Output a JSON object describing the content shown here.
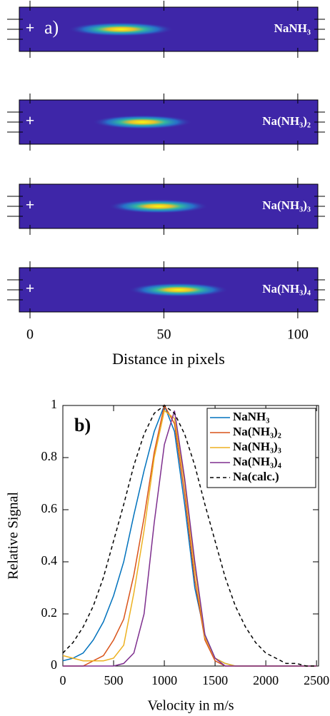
{
  "chart_data": [
    {
      "type": "strips",
      "annotation": "a)",
      "marker": "+",
      "xlabel": "Distance in pixels",
      "xlim": [
        -4,
        107.5
      ],
      "xticks": [
        0,
        50,
        100
      ],
      "strips": [
        {
          "label": "NaNH₃",
          "center": 34,
          "width": 18
        },
        {
          "label": "Na(NH₃)₂",
          "center": 42,
          "width": 17
        },
        {
          "label": "Na(NH₃)₃",
          "center": 48,
          "width": 17
        },
        {
          "label": "Na(NH₃)₄",
          "center": 55.5,
          "width": 17
        }
      ]
    },
    {
      "type": "line",
      "annotation": "b)",
      "xlabel": "Velocity in m/s",
      "ylabel": "Relative Signal",
      "xlim": [
        0,
        2520
      ],
      "ylim": [
        0,
        1
      ],
      "xticks": [
        0,
        500,
        1000,
        1500,
        2000,
        2500
      ],
      "yticks": [
        0,
        0.2,
        0.4,
        0.6,
        0.8,
        1
      ],
      "x": [
        0,
        100,
        200,
        300,
        400,
        500,
        600,
        700,
        800,
        900,
        1000,
        1100,
        1200,
        1300,
        1400,
        1500,
        1600,
        1700,
        1800,
        1900,
        2000,
        2100,
        2200,
        2300,
        2400,
        2500
      ],
      "series": [
        {
          "name": "NaNH₃",
          "color": "#0072bd",
          "dash": false,
          "values": [
            0.02,
            0.03,
            0.05,
            0.1,
            0.17,
            0.27,
            0.4,
            0.58,
            0.75,
            0.9,
            1,
            0.9,
            0.62,
            0.3,
            0.12,
            0.03,
            0.01,
            0,
            0,
            0,
            0,
            0,
            0,
            0,
            0,
            0
          ]
        },
        {
          "name": "Na(NH₃)₂",
          "color": "#d95319",
          "dash": false,
          "values": [
            0,
            0,
            0,
            0.02,
            0.04,
            0.1,
            0.18,
            0.35,
            0.57,
            0.82,
            1,
            0.93,
            0.66,
            0.33,
            0.1,
            0.02,
            0,
            0,
            0,
            0,
            0,
            0,
            0,
            0,
            0,
            0
          ]
        },
        {
          "name": "Na(NH₃)₃",
          "color": "#edb120",
          "dash": false,
          "values": [
            0.04,
            0.03,
            0.02,
            0.02,
            0.02,
            0.03,
            0.08,
            0.28,
            0.52,
            0.8,
            0.98,
            0.95,
            0.7,
            0.37,
            0.11,
            0.03,
            0.01,
            0,
            0,
            0,
            0,
            0,
            0,
            0,
            0,
            0
          ]
        },
        {
          "name": "Na(NH₃)₄",
          "color": "#7e2f8e",
          "dash": false,
          "values": [
            0,
            0,
            0,
            0,
            0,
            0,
            0.01,
            0.05,
            0.2,
            0.55,
            0.85,
            0.98,
            0.72,
            0.4,
            0.12,
            0.03,
            0,
            0,
            0,
            0,
            0,
            0,
            0,
            0,
            0,
            0
          ]
        },
        {
          "name": "Na(calc.)",
          "color": "#000000",
          "dash": true,
          "values": [
            0.05,
            0.09,
            0.15,
            0.23,
            0.34,
            0.48,
            0.62,
            0.77,
            0.89,
            0.97,
            1,
            0.97,
            0.89,
            0.77,
            0.62,
            0.48,
            0.34,
            0.23,
            0.15,
            0.09,
            0.05,
            0.03,
            0.01,
            0.01,
            0,
            0
          ]
        }
      ]
    }
  ]
}
